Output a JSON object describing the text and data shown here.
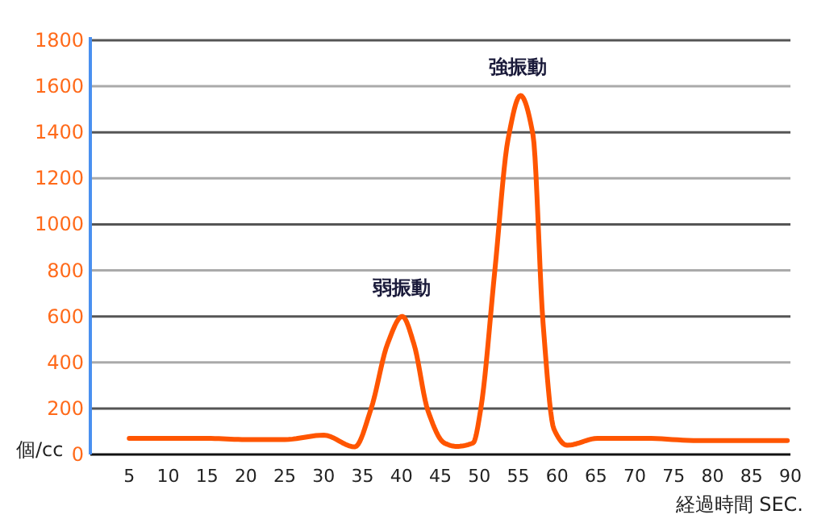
{
  "chart_data": {
    "type": "line",
    "xlabel": "経過時間 SEC.",
    "ylabel": "個/cc",
    "x": [
      5,
      10,
      15,
      20,
      25,
      30,
      34,
      36.1,
      38.2,
      40.1,
      41.6,
      43.4,
      45.5,
      47.1,
      49.2,
      50.2,
      52,
      53.7,
      55.3,
      56.9,
      58.2,
      59.6,
      61.3,
      65.2,
      71.4,
      78.2,
      89.6
    ],
    "series": [
      {
        "color": "#ff5500",
        "values": [
          70,
          70,
          70,
          65,
          65,
          84,
          33,
          200,
          480,
          600,
          480,
          190,
          50,
          35,
          50,
          200,
          800,
          1370,
          1560,
          1390,
          570,
          110,
          40,
          70,
          70,
          60,
          60
        ]
      }
    ],
    "xlim": [
      0,
      90
    ],
    "xticks": [
      5,
      10,
      15,
      20,
      25,
      30,
      35,
      40,
      45,
      50,
      55,
      60,
      65,
      70,
      75,
      80,
      85,
      90
    ],
    "ylim": [
      0,
      1800
    ],
    "yticks": [
      0,
      200,
      400,
      600,
      800,
      1000,
      1200,
      1400,
      1600,
      1800
    ],
    "grid": "y",
    "marker": "none",
    "line_style": "solid",
    "annotations": [
      {
        "text": "弱振動",
        "x": 40,
        "y": 600
      },
      {
        "text": "強振動",
        "x": 55,
        "y": 1560
      }
    ]
  }
}
